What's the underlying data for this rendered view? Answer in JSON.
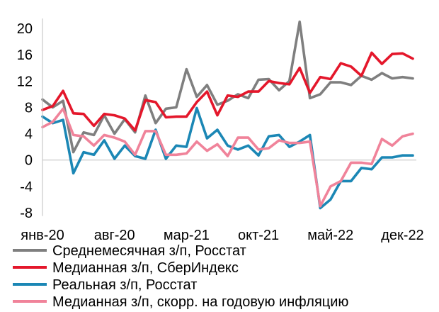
{
  "chart_data": {
    "type": "line",
    "y_ticks": [
      -8,
      -4,
      0,
      4,
      8,
      12,
      16,
      20
    ],
    "ylim": [
      -8.5,
      21.5
    ],
    "x_labels": [
      {
        "index": 0,
        "label": "янв-20"
      },
      {
        "index": 7,
        "label": "авг-20"
      },
      {
        "index": 14,
        "label": "мар-21"
      },
      {
        "index": 21,
        "label": "окт-21"
      },
      {
        "index": 28,
        "label": "май-22"
      },
      {
        "index": 35,
        "label": "дек-22"
      }
    ],
    "periods": 37,
    "legend_position": "bottom",
    "series": [
      {
        "name": "Среднемесячная з/п, Росстат",
        "color": "#7f7f7f",
        "values": [
          9.2,
          8.0,
          9.0,
          1.2,
          4.2,
          3.8,
          6.8,
          4.0,
          6.2,
          4.2,
          9.8,
          5.6,
          7.8,
          8.0,
          13.8,
          9.6,
          11.4,
          8.4,
          9.0,
          10.0,
          9.4,
          12.2,
          12.3,
          10.6,
          12.0,
          21.0,
          9.4,
          10.0,
          11.8,
          11.8,
          11.4,
          12.8,
          12.2,
          13.2,
          12.4,
          12.6,
          12.4
        ]
      },
      {
        "name": "Медианная з/п, СберИндекс",
        "color": "#e4172b",
        "values": [
          7.6,
          8.2,
          10.5,
          7.1,
          7.0,
          5.2,
          7.0,
          6.8,
          6.3,
          4.5,
          9.1,
          8.8,
          6.5,
          6.6,
          6.6,
          8.8,
          10.4,
          6.8,
          9.8,
          9.6,
          10.4,
          10.4,
          12.0,
          11.7,
          11.5,
          14.0,
          10.2,
          12.6,
          12.3,
          14.7,
          14.2,
          12.8,
          16.3,
          14.6,
          16.1,
          16.2,
          15.4
        ]
      },
      {
        "name": "Реальная з/п, Росстат",
        "color": "#1b87b5",
        "values": [
          6.6,
          5.6,
          6.1,
          -2.0,
          1.2,
          0.8,
          3.0,
          0.2,
          2.2,
          0.6,
          0.2,
          4.6,
          0.2,
          2.2,
          2.0,
          7.9,
          3.3,
          4.6,
          2.2,
          1.6,
          2.2,
          0.7,
          3.6,
          3.8,
          2.0,
          2.8,
          3.8,
          -7.3,
          -6.0,
          -3.2,
          -3.2,
          -1.2,
          -1.4,
          0.4,
          0.4,
          0.7,
          0.7
        ]
      },
      {
        "name": "Медианная з/п, скорр. на годовую инфляцию",
        "color": "#f0839a",
        "values": [
          5.0,
          5.8,
          7.8,
          3.8,
          3.6,
          2.2,
          3.8,
          3.4,
          2.8,
          0.8,
          4.4,
          4.4,
          0.8,
          0.8,
          1.0,
          2.8,
          1.4,
          2.4,
          0.6,
          3.4,
          3.4,
          1.6,
          1.8,
          3.0,
          2.6,
          2.6,
          2.8,
          -7.0,
          -4.0,
          -3.2,
          -0.4,
          -0.4,
          -0.6,
          3.2,
          2.2,
          3.6,
          4.0
        ]
      }
    ]
  }
}
